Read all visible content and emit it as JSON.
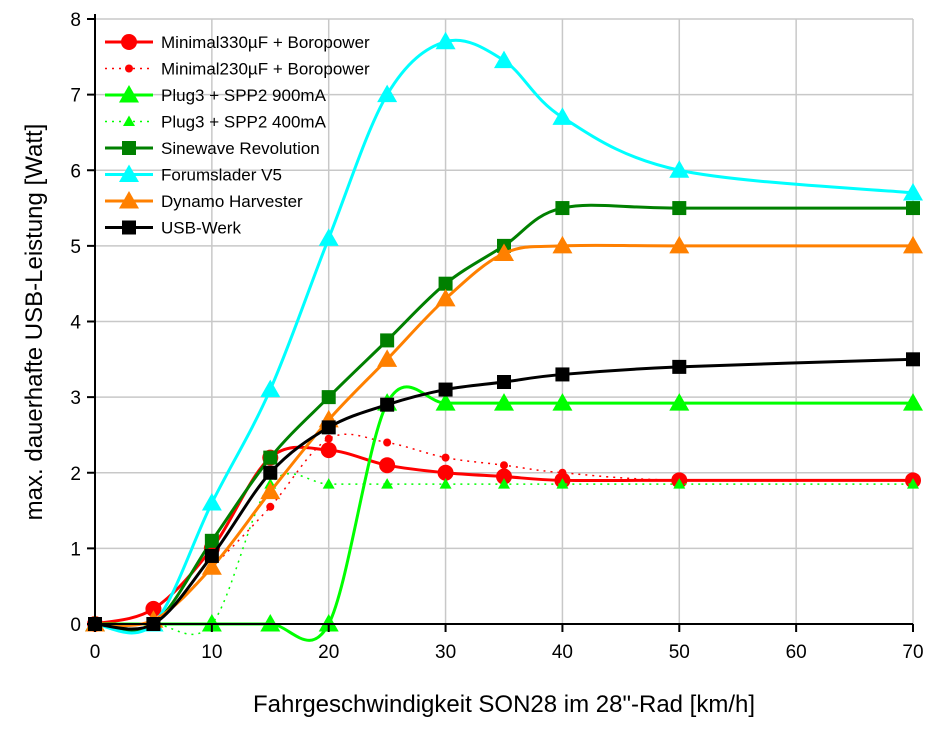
{
  "chart_data": {
    "type": "line",
    "title": "",
    "xlabel": "Fahrgeschwindigkeit SON28 im 28\"-Rad [km/h]",
    "ylabel": "max. dauerhafte USB-Leistung [Watt]",
    "xlim": [
      0,
      70
    ],
    "ylim": [
      0,
      8
    ],
    "xticks": [
      0,
      10,
      20,
      30,
      40,
      50,
      60,
      70
    ],
    "yticks": [
      0,
      1,
      2,
      3,
      4,
      5,
      6,
      7,
      8
    ],
    "grid": true,
    "legend_position": "top-left",
    "x": [
      0,
      5,
      10,
      15,
      20,
      25,
      30,
      35,
      40,
      50,
      70
    ],
    "series": [
      {
        "name": "Minimal330µF + Boropower",
        "color": "#ff0000",
        "marker": "circle",
        "line": "solid",
        "values": [
          0,
          0.2,
          1.0,
          2.2,
          2.3,
          2.1,
          2.0,
          1.95,
          1.9,
          1.9,
          1.9
        ]
      },
      {
        "name": "Minimal230µF + Boropower",
        "color": "#ff0000",
        "marker": "circle-small",
        "line": "dotted",
        "values": [
          0,
          0.05,
          0.75,
          1.55,
          2.45,
          2.4,
          2.2,
          2.1,
          2.0,
          1.9,
          1.9
        ]
      },
      {
        "name": "Plug3 + SPP2 900mA",
        "color": "#00ff00",
        "marker": "triangle",
        "line": "solid",
        "values": [
          0,
          0,
          0,
          0,
          0,
          2.92,
          2.92,
          2.92,
          2.92,
          2.92,
          2.92
        ]
      },
      {
        "name": "Plug3 + SPP2 400mA",
        "color": "#00ff00",
        "marker": "triangle-small",
        "line": "dotted",
        "values": [
          0,
          0,
          0,
          1.85,
          1.85,
          1.85,
          1.85,
          1.85,
          1.85,
          1.85,
          1.85
        ]
      },
      {
        "name": "Sinewave Revolution",
        "color": "#008000",
        "marker": "square",
        "line": "solid",
        "values": [
          0,
          0,
          1.1,
          2.2,
          3.0,
          3.75,
          4.5,
          5.0,
          5.5,
          5.5,
          5.5
        ]
      },
      {
        "name": "Forumslader V5",
        "color": "#00ffff",
        "marker": "triangle",
        "line": "solid",
        "values": [
          0,
          0,
          1.6,
          3.1,
          5.1,
          7.0,
          7.7,
          7.45,
          6.7,
          6.0,
          5.7
        ]
      },
      {
        "name": "Dynamo Harvester",
        "color": "#ff8000",
        "marker": "triangle",
        "line": "solid",
        "values": [
          0,
          0.05,
          0.75,
          1.75,
          2.7,
          3.5,
          4.3,
          4.9,
          5.0,
          5.0,
          5.0
        ]
      },
      {
        "name": "USB-Werk",
        "color": "#000000",
        "marker": "square",
        "line": "solid",
        "values": [
          0,
          0,
          0.9,
          2.0,
          2.6,
          2.9,
          3.1,
          3.2,
          3.3,
          3.4,
          3.5
        ]
      }
    ]
  }
}
